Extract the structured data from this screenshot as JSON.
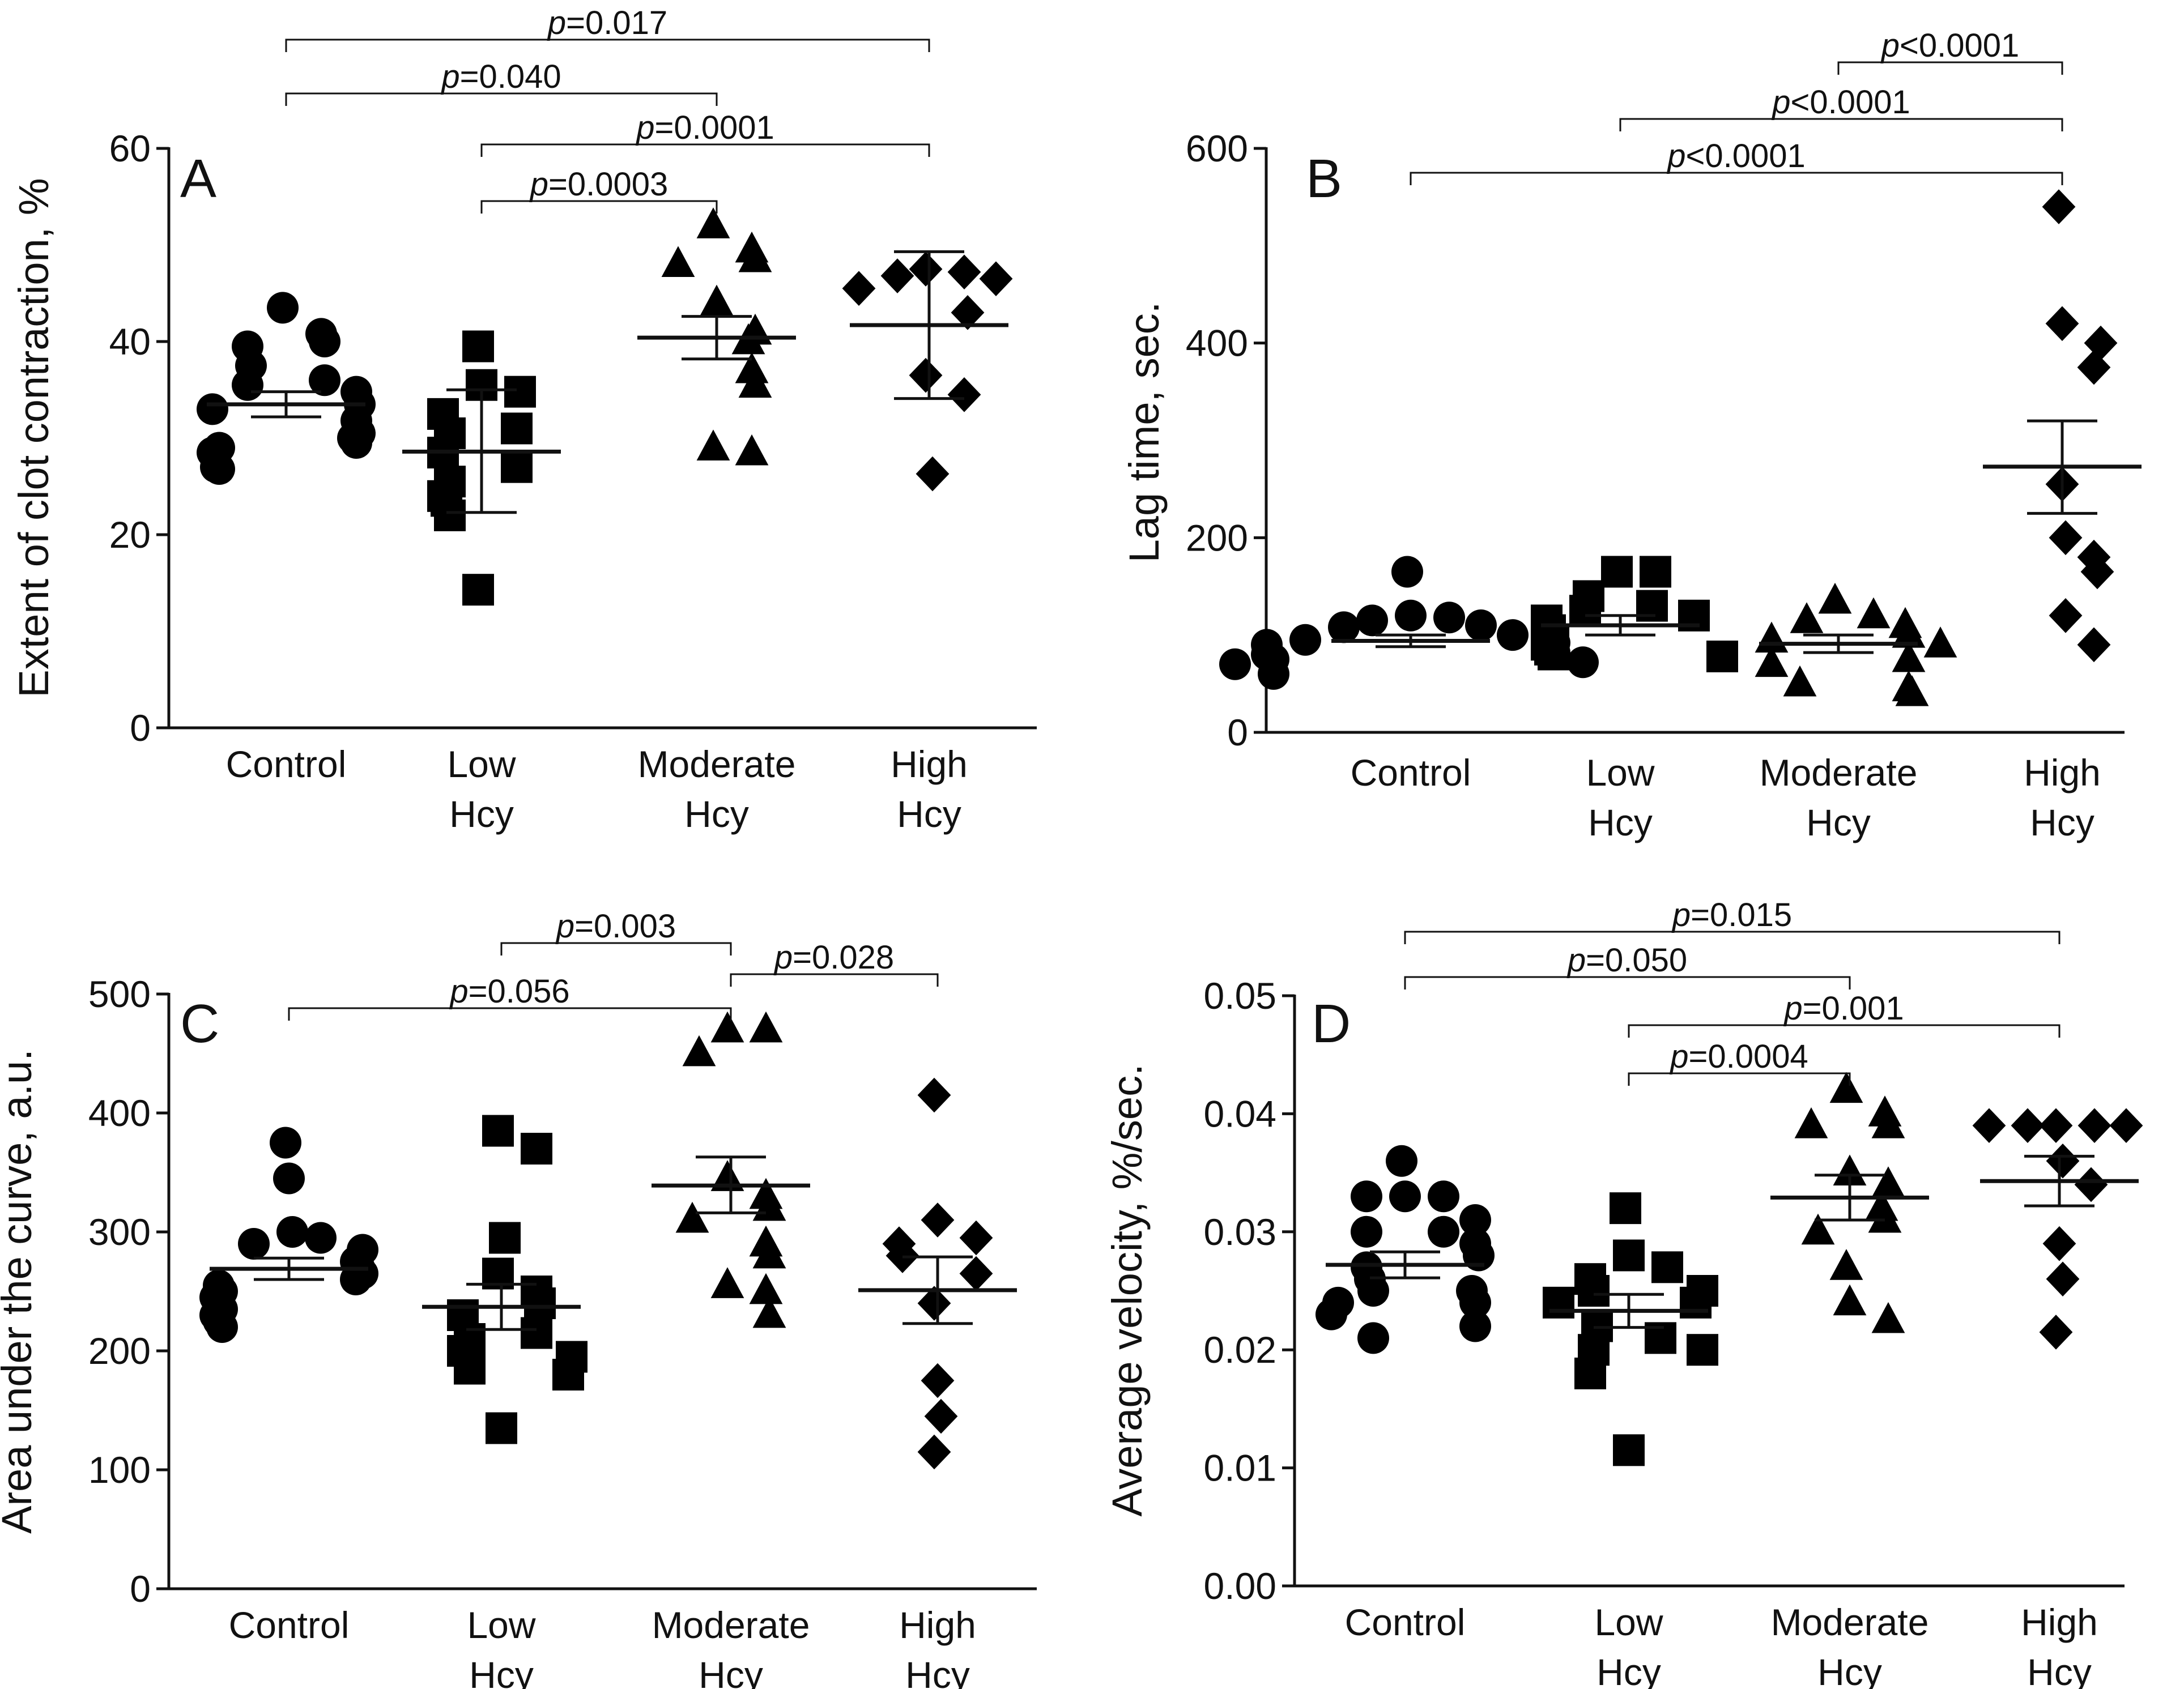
{
  "chart_data": [
    {
      "type": "scatter",
      "panel": "A",
      "ylabel": "Extent of clot contraction, %",
      "ylim": [
        0,
        60
      ],
      "yticks": [
        0,
        20,
        40,
        60
      ],
      "categories": [
        "Control",
        "Low\nHcy",
        "Moderate\nHcy",
        "High\nHcy"
      ],
      "markers": [
        "circle",
        "square",
        "triangle",
        "diamond"
      ],
      "series": [
        {
          "name": "Control",
          "values": [
            43.5,
            40.8,
            40.0,
            39.5,
            37.5,
            36.0,
            35.5,
            34.8,
            33.5,
            33.0,
            31.8,
            30.5,
            30.0,
            29.5,
            29.0,
            28.5,
            27.0,
            26.8
          ],
          "mean": 33.5,
          "err_low": 32.2,
          "err_high": 34.8
        },
        {
          "name": "Low Hcy",
          "values": [
            39.5,
            35.5,
            34.8,
            32.5,
            31.0,
            30.5,
            28.5,
            27.0,
            25.5,
            24.0,
            23.5,
            22.0,
            14.3
          ],
          "mean": 28.6,
          "err_low": 22.3,
          "err_high": 35.0
        },
        {
          "name": "Moderate Hcy",
          "values": [
            52.0,
            49.5,
            48.5,
            48.0,
            44.0,
            41.0,
            40.0,
            37.0,
            35.5,
            29.0,
            28.5
          ],
          "mean": 40.4,
          "err_low": 38.2,
          "err_high": 42.6
        },
        {
          "name": "High Hcy",
          "values": [
            47.5,
            47.2,
            46.8,
            46.5,
            45.5,
            43.0,
            36.5,
            34.5,
            26.3
          ],
          "mean": 41.7,
          "err_low": 34.1,
          "err_high": 49.3
        }
      ],
      "comparisons": [
        {
          "groups": [
            0,
            3
          ],
          "label": "p=0.017"
        },
        {
          "groups": [
            0,
            2
          ],
          "label": "p=0.040"
        },
        {
          "groups": [
            1,
            3
          ],
          "label": "p=0.0001"
        },
        {
          "groups": [
            1,
            2
          ],
          "label": "p=0.0003"
        }
      ]
    },
    {
      "type": "scatter",
      "panel": "B",
      "ylabel": "Lag time, sec.",
      "ylim": [
        0,
        600
      ],
      "yticks": [
        0,
        200,
        400,
        600
      ],
      "categories": [
        "Control",
        "Low\nHcy",
        "Moderate\nHcy",
        "High\nHcy"
      ],
      "markers": [
        "circle",
        "square",
        "triangle",
        "diamond"
      ],
      "series": [
        {
          "name": "Control",
          "values": [
            165,
            120,
            118,
            115,
            110,
            108,
            100,
            95,
            92,
            90,
            85,
            82,
            80,
            78,
            75,
            72,
            70,
            60
          ],
          "mean": 94,
          "err_low": 88,
          "err_high": 100
        },
        {
          "name": "Low Hcy",
          "values": [
            165,
            165,
            140,
            130,
            125,
            120,
            115,
            105,
            95,
            90,
            85,
            80,
            78
          ],
          "mean": 110,
          "err_low": 100,
          "err_high": 120
        },
        {
          "name": "Moderate Hcy",
          "values": [
            135,
            120,
            115,
            110,
            100,
            95,
            90,
            75,
            70,
            50,
            45,
            40
          ],
          "mean": 91,
          "err_low": 82,
          "err_high": 100
        },
        {
          "name": "High Hcy",
          "values": [
            540,
            420,
            400,
            375,
            255,
            200,
            180,
            165,
            120,
            90
          ],
          "mean": 273,
          "err_low": 225,
          "err_high": 320
        }
      ],
      "comparisons": [
        {
          "groups": [
            2,
            3
          ],
          "label": "p<0.0001"
        },
        {
          "groups": [
            1,
            3
          ],
          "label": "p<0.0001"
        },
        {
          "groups": [
            0,
            3
          ],
          "label": "p<0.0001"
        }
      ]
    },
    {
      "type": "scatter",
      "panel": "C",
      "ylabel": "Area under the curve, a.u.",
      "ylim": [
        0,
        500
      ],
      "yticks": [
        0,
        100,
        200,
        300,
        400,
        500
      ],
      "categories": [
        "Control",
        "Low\nHcy",
        "Moderate\nHcy",
        "High\nHcy"
      ],
      "markers": [
        "circle",
        "square",
        "triangle",
        "diamond"
      ],
      "series": [
        {
          "name": "Control",
          "values": [
            375,
            345,
            300,
            295,
            290,
            285,
            275,
            270,
            265,
            260,
            255,
            250,
            245,
            240,
            235,
            230,
            225,
            220
          ],
          "mean": 269,
          "err_low": 260,
          "err_high": 278
        },
        {
          "name": "Low Hcy",
          "values": [
            385,
            370,
            295,
            265,
            250,
            240,
            230,
            215,
            210,
            200,
            195,
            185,
            180,
            135
          ],
          "mean": 237,
          "err_low": 218,
          "err_high": 256
        },
        {
          "name": "Moderate Hcy",
          "values": [
            470,
            470,
            450,
            345,
            330,
            320,
            310,
            290,
            280,
            255,
            250,
            230
          ],
          "mean": 339,
          "err_low": 316,
          "err_high": 363
        },
        {
          "name": "High Hcy",
          "values": [
            415,
            310,
            295,
            290,
            280,
            265,
            240,
            175,
            145,
            115
          ],
          "mean": 251,
          "err_low": 223,
          "err_high": 279
        }
      ],
      "comparisons": [
        {
          "groups": [
            1,
            2
          ],
          "label": "p=0.003"
        },
        {
          "groups": [
            2,
            3
          ],
          "label": "p=0.028"
        },
        {
          "groups": [
            0,
            2
          ],
          "label": "p=0.056"
        }
      ]
    },
    {
      "type": "scatter",
      "panel": "D",
      "ylabel": "Average velocity, %/sec.",
      "ylim": [
        0,
        0.05
      ],
      "yticks": [
        "0.00",
        "0.01",
        "0.02",
        "0.03",
        "0.04",
        "0.05"
      ],
      "categories": [
        "Control",
        "Low\nHcy",
        "Moderate\nHcy",
        "High\nHcy"
      ],
      "markers": [
        "circle",
        "square",
        "triangle",
        "diamond"
      ],
      "series": [
        {
          "name": "Control",
          "values": [
            0.036,
            0.033,
            0.033,
            0.033,
            0.031,
            0.03,
            0.03,
            0.029,
            0.028,
            0.027,
            0.026,
            0.025,
            0.025,
            0.024,
            0.024,
            0.023,
            0.022,
            0.021
          ],
          "mean": 0.0272,
          "err_low": 0.0261,
          "err_high": 0.0283
        },
        {
          "name": "Low Hcy",
          "values": [
            0.032,
            0.028,
            0.027,
            0.026,
            0.025,
            0.025,
            0.024,
            0.024,
            0.022,
            0.021,
            0.02,
            0.02,
            0.018,
            0.0115
          ],
          "mean": 0.0233,
          "err_low": 0.0219,
          "err_high": 0.0247
        },
        {
          "name": "Moderate Hcy",
          "values": [
            0.042,
            0.04,
            0.039,
            0.039,
            0.035,
            0.034,
            0.032,
            0.031,
            0.03,
            0.027,
            0.024,
            0.0225
          ],
          "mean": 0.0329,
          "err_low": 0.031,
          "err_high": 0.0348
        },
        {
          "name": "High Hcy",
          "values": [
            0.039,
            0.039,
            0.039,
            0.039,
            0.039,
            0.036,
            0.034,
            0.029,
            0.026,
            0.0215
          ],
          "mean": 0.0343,
          "err_low": 0.0322,
          "err_high": 0.0364
        }
      ],
      "comparisons": [
        {
          "groups": [
            0,
            3
          ],
          "label": "p=0.015"
        },
        {
          "groups": [
            0,
            2
          ],
          "label": "p=0.050"
        },
        {
          "groups": [
            1,
            3
          ],
          "label": "p=0.001"
        },
        {
          "groups": [
            1,
            2
          ],
          "label": "p=0.0004"
        }
      ]
    }
  ]
}
